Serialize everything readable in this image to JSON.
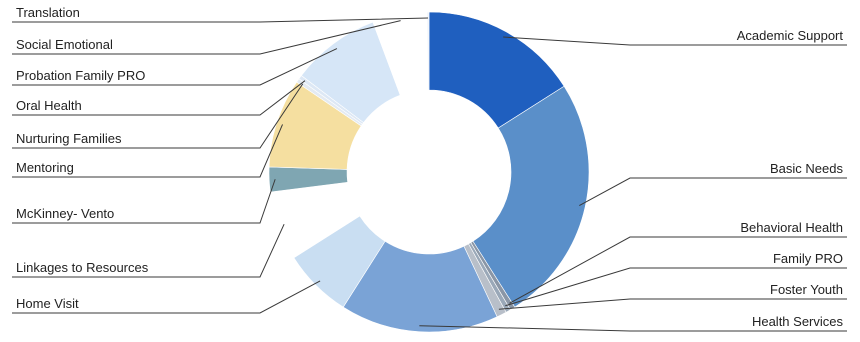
{
  "chart_data": {
    "type": "pie",
    "donut": true,
    "title": "",
    "series": [
      {
        "slices": [
          {
            "label": "Academic Support",
            "value": 16.0,
            "color": "#1f5fbf"
          },
          {
            "label": "Basic Needs",
            "value": 25.0,
            "color": "#5a8fc9"
          },
          {
            "label": "Behavioral Health",
            "value": 0.5,
            "color": "#8a96a6"
          },
          {
            "label": "Family PRO",
            "value": 0.5,
            "color": "#9aa8b8"
          },
          {
            "label": "Foster Youth",
            "value": 1.0,
            "color": "#b8bfc9"
          },
          {
            "label": "Health Services",
            "value": 16.0,
            "color": "#7aa3d6"
          },
          {
            "label": "Home Visit",
            "value": 7.0,
            "color": "#c9def2"
          },
          {
            "label": "Linkages to Resources",
            "value": 7.0,
            "color": "#ffffff"
          },
          {
            "label": "McKinney- Vento",
            "value": 2.5,
            "color": "#7fa6b2"
          },
          {
            "label": "Mentoring",
            "value": 9.0,
            "color": "#f5dfa0"
          },
          {
            "label": "Nurturing Families",
            "value": 0.4,
            "color": "#e3eaf2"
          },
          {
            "label": "Oral Health",
            "value": 0.4,
            "color": "#dde8f5"
          },
          {
            "label": "Probation Family PRO",
            "value": 9.0,
            "color": "#d6e6f7"
          },
          {
            "label": "Social Emotional",
            "value": 5.5,
            "color": "#ffffff"
          },
          {
            "label": "Translation",
            "value": 0.2,
            "color": "#eef3f9"
          }
        ]
      }
    ]
  }
}
